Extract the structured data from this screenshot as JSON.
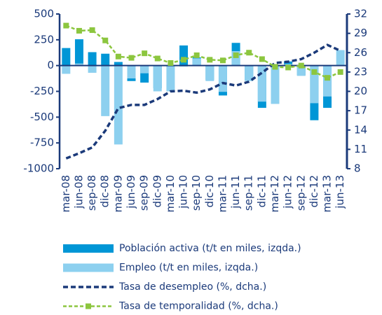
{
  "chart_data": {
    "type": "bar",
    "categories": [
      "mar-08",
      "jun-08",
      "sep-08",
      "dic-08",
      "mar-09",
      "jun-09",
      "sep-09",
      "dic-09",
      "mar-10",
      "jun-10",
      "sep-10",
      "dic-10",
      "mar-11",
      "jun-11",
      "sep-11",
      "dic-11",
      "mar-12",
      "jun-12",
      "sep-12",
      "dic-12",
      "mar-13",
      "jun-13"
    ],
    "series": [
      {
        "name": "Población activa (t/t en miles, izqda.)",
        "type": "bar",
        "color": "#0096d6",
        "values": [
          170,
          255,
          130,
          115,
          35,
          -150,
          -165,
          -220,
          -10,
          195,
          80,
          -140,
          -290,
          220,
          -145,
          -410,
          -370,
          40,
          -95,
          -530,
          -410,
          0
        ]
      },
      {
        "name": "Empleo (t/t en miles, izqda.)",
        "type": "bar",
        "color": "#8dd0ef",
        "values": [
          -80,
          20,
          -70,
          -490,
          -765,
          -125,
          -75,
          -250,
          -250,
          -10,
          70,
          -150,
          -255,
          140,
          -150,
          -350,
          -370,
          15,
          -100,
          -365,
          -300,
          150
        ]
      },
      {
        "name": "Tasa de desempleo (%, dcha.)",
        "type": "line",
        "axis": "y2",
        "color": "#1b3a7a",
        "values": [
          9.6,
          10.4,
          11.3,
          13.9,
          17.4,
          17.9,
          17.9,
          18.8,
          20.0,
          20.1,
          19.8,
          20.3,
          21.3,
          20.9,
          21.5,
          22.9,
          24.4,
          24.6,
          25.0,
          26.0,
          27.2,
          26.3
        ]
      },
      {
        "name": "Tasa de temporalidad (%, dcha.)",
        "type": "line",
        "axis": "y2",
        "color": "#8cc63f",
        "marker": "square",
        "values": [
          30.2,
          29.4,
          29.5,
          27.9,
          25.4,
          25.2,
          25.9,
          25.1,
          24.4,
          24.9,
          25.6,
          24.9,
          24.8,
          25.6,
          26.0,
          25.0,
          23.8,
          23.7,
          24.0,
          23.0,
          22.1,
          23.0
        ]
      }
    ],
    "ylim": [
      -1000,
      500
    ],
    "yticks": [
      500,
      250,
      0,
      -250,
      -500,
      -750,
      -1000
    ],
    "y2lim": [
      8,
      32
    ],
    "y2ticks": [
      32,
      29,
      26,
      23,
      20,
      17,
      14,
      11,
      8
    ]
  }
}
